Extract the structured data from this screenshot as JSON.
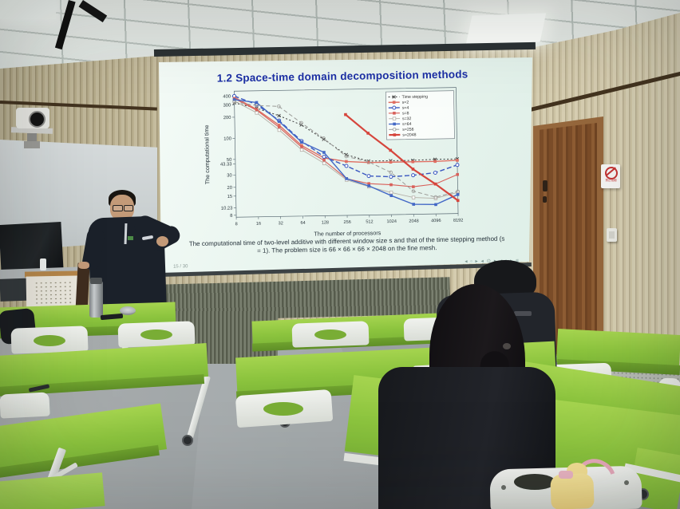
{
  "scene": {
    "type": "classroom-lecture-photo",
    "palette": {
      "desk_green": "#8dc63f",
      "wall_wood": "#c9bf9e",
      "floor_gray": "#9aa0a2",
      "door_brown": "#7d4f28",
      "slide_background": "#eaf5f0",
      "title_blue": "#1c2fa5",
      "series_red": "#d8605a",
      "series_blue": "#3a57c0"
    },
    "no_smoking_sign_text": "禁止吸烟"
  },
  "screen_slide": {
    "title": "1.2  Space-time domain decomposition methods",
    "caption": "The computational time of two-level additive with different window size s and that of the time stepping method (s = 1). The problem size is 66 × 66 × 66 × 2048 on the fine mesh.",
    "footer_page": "15 / 30",
    "nav_symbols": "◂ ▫ ▸   ◂ ⊙ ▸   ◂ ▪ ▸   ≡"
  },
  "chart_data": {
    "type": "line",
    "title": "",
    "xlabel": "The number of processors",
    "ylabel": "The computational time",
    "x_scale": "log2",
    "y_scale": "log10",
    "x": [
      8,
      16,
      32,
      64,
      128,
      256,
      512,
      1024,
      2048,
      4096,
      8192
    ],
    "x_tick_labels": [
      "8",
      "16",
      "32",
      "64",
      "128",
      "256",
      "512",
      "1024",
      "2048",
      "4096",
      "8192"
    ],
    "y_ticks": [
      400,
      300,
      200,
      100,
      50,
      43.33,
      30,
      20,
      15,
      10.23,
      8
    ],
    "y_tick_labels": [
      "400",
      "300",
      "200",
      "100",
      "50",
      "43.33",
      "30",
      "20",
      "15",
      "10.23",
      "8"
    ],
    "ylim": [
      7.5,
      470
    ],
    "grid": false,
    "legend_position": "top-right",
    "series": [
      {
        "name": "Time stepping",
        "color": "#3a3a3a",
        "dash": "2,2.5",
        "marker": "x",
        "width": 1,
        "values": [
          320,
          265,
          205,
          150,
          92,
          55,
          44,
          44,
          44,
          45,
          45
        ]
      },
      {
        "name": "s=2",
        "color": "#df6e62",
        "dash": "",
        "marker": "square",
        "width": 1.4,
        "values": [
          385,
          255,
          150,
          76,
          50,
          44,
          42,
          42,
          42,
          42,
          43
        ]
      },
      {
        "name": "s=4",
        "color": "#3a57c0",
        "dash": "6,3",
        "marker": "circle",
        "width": 1.4,
        "values": [
          400,
          300,
          175,
          88,
          52,
          38,
          27,
          26,
          27,
          29,
          37
        ]
      },
      {
        "name": "s=8",
        "color": "#d8605a",
        "dash": "",
        "marker": "square",
        "width": 1.1,
        "values": [
          370,
          248,
          140,
          72,
          46,
          25,
          21,
          20,
          18.5,
          20,
          27
        ]
      },
      {
        "name": "s=32",
        "color": "#b5b0a8",
        "dash": "",
        "marker": "square-open",
        "width": 0.9,
        "values": [
          340,
          228,
          128,
          66,
          42,
          24,
          19,
          15.5,
          13,
          12.5,
          15
        ]
      },
      {
        "name": "s=64",
        "color": "#4368c6",
        "dash": "",
        "marker": "square",
        "width": 1.4,
        "values": [
          355,
          320,
          170,
          85,
          60,
          25,
          19.5,
          14,
          10.4,
          10.2,
          14
        ]
      },
      {
        "name": "s=256",
        "color": "#9b9b98",
        "dash": "5,3",
        "marker": "circle-open",
        "width": 1,
        "values": [
          330,
          290,
          278,
          160,
          95,
          52,
          43,
          30,
          16,
          13,
          15.5
        ]
      },
      {
        "name": "s=2048",
        "color": "#d6453c",
        "dash": "",
        "marker": "square",
        "width": 2.2,
        "values": [
          null,
          null,
          null,
          null,
          null,
          205,
          110,
          62,
          33,
          20,
          11.5
        ]
      }
    ]
  }
}
